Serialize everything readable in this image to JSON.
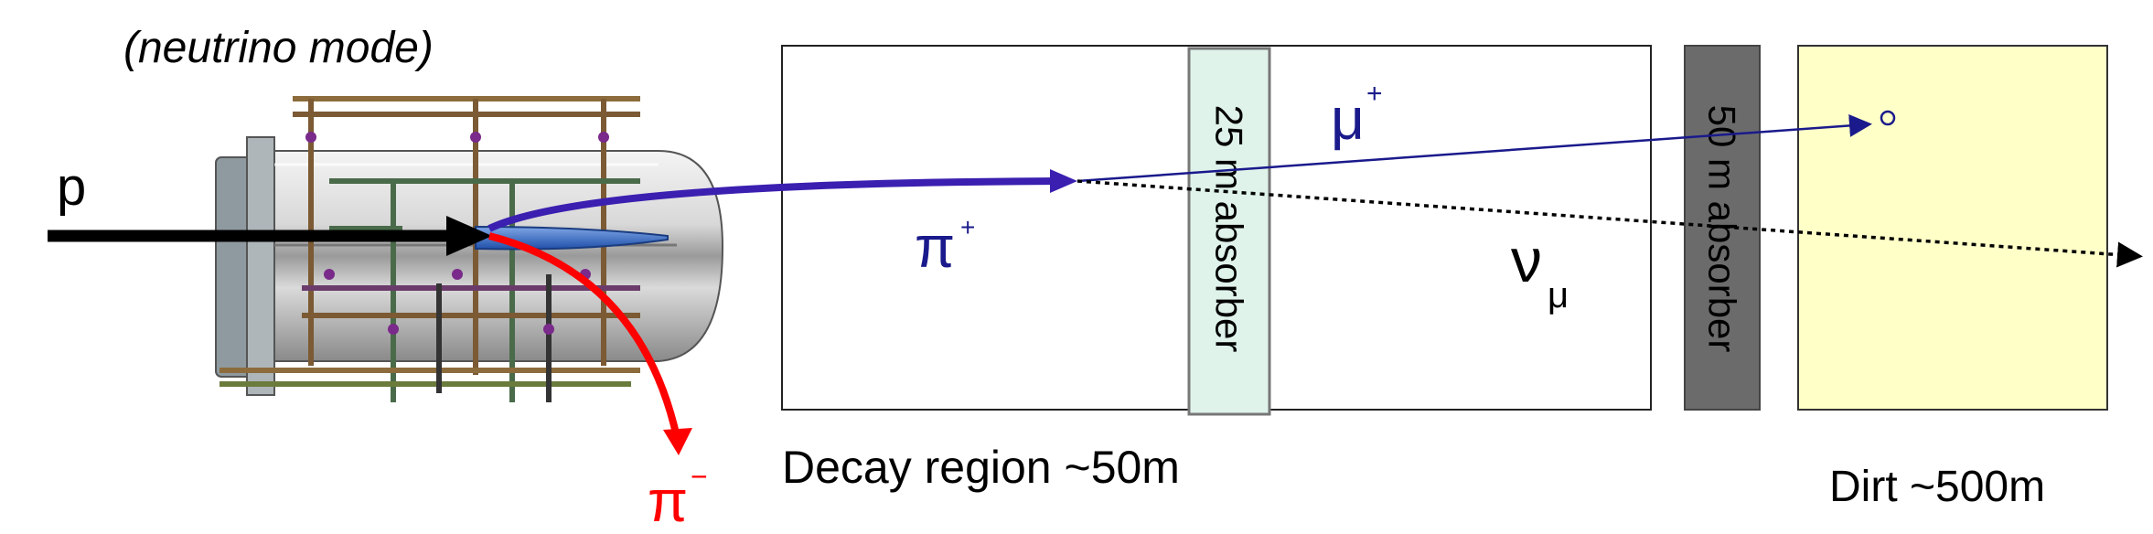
{
  "labels": {
    "mode": "(neutrino mode)",
    "proton": "p",
    "pi_plus": "π",
    "pi_plus_sup": "+",
    "pi_minus": "π",
    "pi_minus_sup": "−",
    "mu_plus": "μ",
    "mu_plus_sup": "+",
    "nu": "ν",
    "nu_sub": "μ",
    "absorber_25": "25 m absorber",
    "absorber_50": "50 m absorber",
    "decay_region": "Decay region ~50m",
    "dirt": "Dirt ~500m"
  },
  "colors": {
    "pi_plus_track": "#3b1fb0",
    "pi_minus_track": "#ff0000",
    "mu_track": "#1a1a8c",
    "label_blue": "#1a1a8c",
    "absorber_25_fill": "#dff3ea",
    "absorber_50_fill": "#6b6b6b",
    "dirt_fill": "#ffffc8"
  }
}
